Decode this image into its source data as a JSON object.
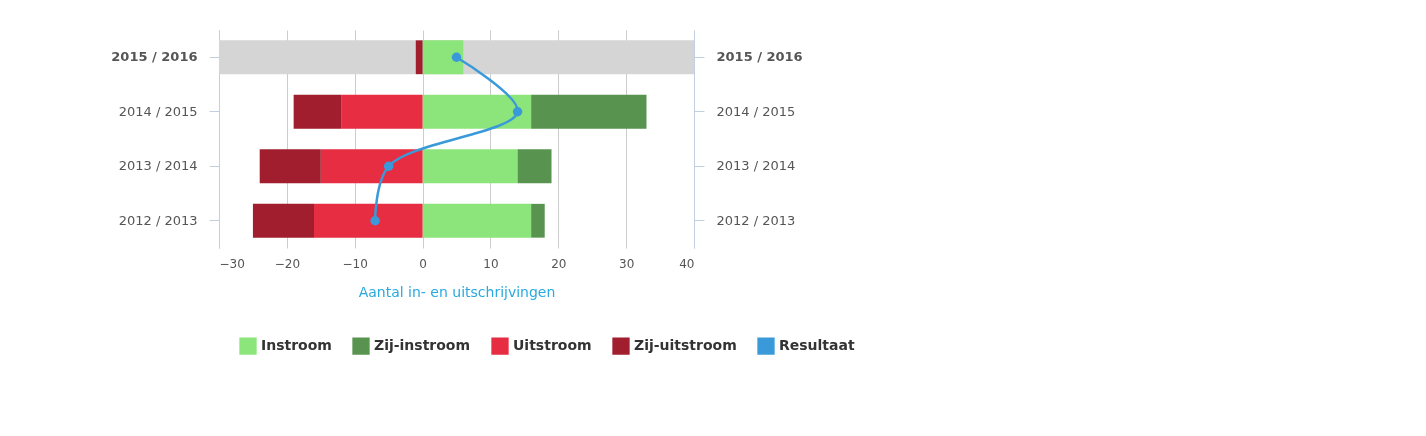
{
  "chart_data": {
    "type": "bar",
    "orientation": "horizontal",
    "stacked": true,
    "xlabel": "Aantal in- en uitschrijvingen",
    "categories": [
      "2015 / 2016",
      "2014 / 2015",
      "2013 / 2014",
      "2012 / 2013"
    ],
    "series": [
      {
        "name": "Instroom",
        "color": "#8ce57a",
        "values": [
          6,
          16,
          14,
          16
        ]
      },
      {
        "name": "Zij-instroom",
        "color": "#58934f",
        "values": [
          0,
          17,
          5,
          2
        ]
      },
      {
        "name": "Uitstroom",
        "color": "#e62d42",
        "values": [
          0,
          -12,
          -15,
          -16
        ]
      },
      {
        "name": "Zij-uitstroom",
        "color": "#a01e2e",
        "values": [
          -1,
          -7,
          -9,
          -9
        ]
      },
      {
        "name": "Resultaat",
        "type": "line",
        "color": "#3a9ad9",
        "values": [
          5,
          14,
          -5,
          -7
        ]
      }
    ],
    "xlim": [
      -30,
      40
    ],
    "xticks": [
      -30,
      -20,
      -10,
      0,
      10,
      20,
      30,
      40
    ],
    "bands": [
      {
        "axis": "y",
        "from": "2015 / 2016",
        "to": "2015 / 2016",
        "color": "#d5d5d5"
      }
    ],
    "grid": "x",
    "legend": "bottom",
    "marker": "circle"
  }
}
